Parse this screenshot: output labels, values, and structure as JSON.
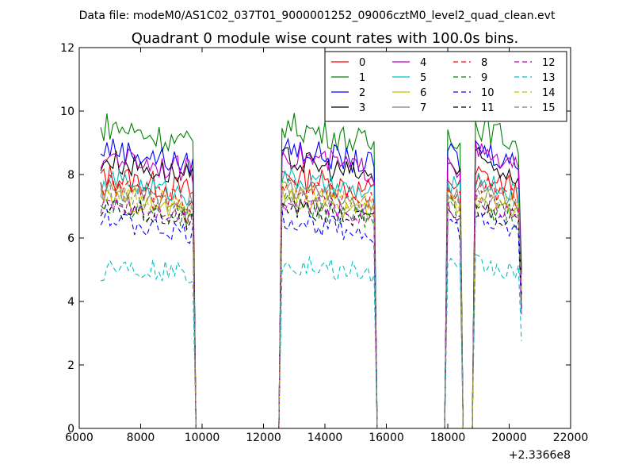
{
  "header": {
    "data_file": "Data file: modeM0/AS1C02_037T01_9000001252_09006cztM0_level2_quad_clean.evt"
  },
  "chart_data": {
    "type": "line",
    "title": "Quadrant 0 module wise count rates with 100.0s bins.",
    "xlabel": "",
    "ylabel": "",
    "x_offset_label": "+2.3366e8",
    "xlim": [
      6000,
      22000
    ],
    "ylim": [
      0,
      12
    ],
    "x_ticks": [
      6000,
      8000,
      10000,
      12000,
      14000,
      16000,
      18000,
      20000,
      22000
    ],
    "x_tick_labels": [
      "6000",
      "8000",
      "10000",
      "12000",
      "14000",
      "16000",
      "18000",
      "20000",
      "22000"
    ],
    "y_ticks": [
      0,
      2,
      4,
      6,
      8,
      10,
      12
    ],
    "y_tick_labels": [
      "0",
      "2",
      "4",
      "6",
      "8",
      "10",
      "12"
    ],
    "grid": false,
    "legend_position": "top-right",
    "legend_columns": 4,
    "segments": [
      {
        "start": 6700,
        "end": 9700
      },
      {
        "start": 12600,
        "end": 15600
      },
      {
        "start": 17950,
        "end": 18450
      },
      {
        "start": 18900,
        "end": 20400
      }
    ],
    "series": [
      {
        "name": "0",
        "color": "#ff0000",
        "style": "solid",
        "base": 8.0,
        "amp": 0.45
      },
      {
        "name": "1",
        "color": "#008000",
        "style": "solid",
        "base": 9.6,
        "amp": 0.45
      },
      {
        "name": "2",
        "color": "#0000ff",
        "style": "solid",
        "base": 8.9,
        "amp": 0.4
      },
      {
        "name": "3",
        "color": "#000000",
        "style": "solid",
        "base": 8.5,
        "amp": 0.4
      },
      {
        "name": "4",
        "color": "#bf00bf",
        "style": "solid",
        "base": 8.7,
        "amp": 0.4
      },
      {
        "name": "5",
        "color": "#00bfbf",
        "style": "solid",
        "base": 7.9,
        "amp": 0.35
      },
      {
        "name": "6",
        "color": "#bfbf00",
        "style": "solid",
        "base": 7.3,
        "amp": 0.35
      },
      {
        "name": "7",
        "color": "#808080",
        "style": "solid",
        "base": 7.6,
        "amp": 0.35
      },
      {
        "name": "8",
        "color": "#ff0000",
        "style": "dashed",
        "base": 7.7,
        "amp": 0.35
      },
      {
        "name": "9",
        "color": "#008000",
        "style": "dashed",
        "base": 7.1,
        "amp": 0.35
      },
      {
        "name": "10",
        "color": "#0000ff",
        "style": "dashed",
        "base": 6.6,
        "amp": 0.35
      },
      {
        "name": "11",
        "color": "#000000",
        "style": "dashed",
        "base": 7.0,
        "amp": 0.35
      },
      {
        "name": "12",
        "color": "#bf00bf",
        "style": "dashed",
        "base": 7.2,
        "amp": 0.35
      },
      {
        "name": "13",
        "color": "#00bfbf",
        "style": "dashed",
        "base": 5.2,
        "amp": 0.35
      },
      {
        "name": "14",
        "color": "#bfbf00",
        "style": "dashed",
        "base": 7.5,
        "amp": 0.35
      },
      {
        "name": "15",
        "color": "#808080",
        "style": "dashed",
        "base": 7.4,
        "amp": 0.35
      }
    ]
  }
}
